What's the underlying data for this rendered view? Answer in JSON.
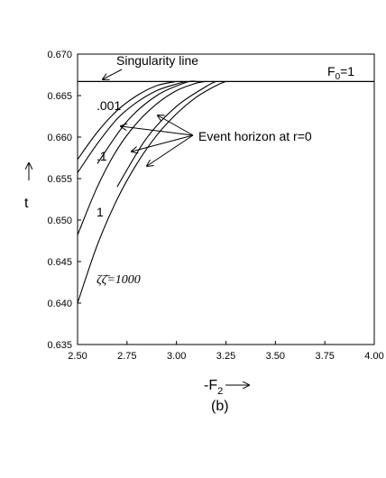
{
  "chart_data": {
    "type": "line",
    "panel_label": "(b)",
    "xlabel": "-F",
    "xlabel_sub": "2",
    "ylabel": "t",
    "xlim": [
      2.5,
      4.0
    ],
    "ylim": [
      0.635,
      0.67
    ],
    "x_ticks": [
      "2.50",
      "2.75",
      "3.00",
      "3.25",
      "3.50",
      "3.75",
      "4.00"
    ],
    "x_tick_values": [
      2.5,
      2.75,
      3.0,
      3.25,
      3.5,
      3.75,
      4.0
    ],
    "y_ticks": [
      "0.635",
      "0.640",
      "0.645",
      "0.650",
      "0.655",
      "0.660",
      "0.665",
      "0.670"
    ],
    "y_tick_values": [
      0.635,
      0.64,
      0.645,
      0.65,
      0.655,
      0.66,
      0.665,
      0.67
    ],
    "singularity_t": 0.6667,
    "series": [
      {
        "name": ".001",
        "x": [
          2.5,
          2.6,
          2.7,
          2.8,
          2.9,
          3.0
        ],
        "y": [
          0.6573,
          0.6606,
          0.6632,
          0.665,
          0.6662,
          0.6667
        ]
      },
      {
        "name": ".1",
        "x": [
          2.5,
          2.6,
          2.7,
          2.8,
          2.9,
          3.0,
          3.05
        ],
        "y": [
          0.6557,
          0.6592,
          0.6622,
          0.6642,
          0.6656,
          0.6664,
          0.6667
        ]
      },
      {
        "name": "1",
        "x": [
          2.5,
          2.6,
          2.7,
          2.8,
          2.9,
          3.0,
          3.1,
          3.15
        ],
        "y": [
          0.6482,
          0.654,
          0.6585,
          0.6617,
          0.664,
          0.6656,
          0.6665,
          0.6667
        ]
      },
      {
        "name": "1000",
        "x": [
          2.5,
          2.6,
          2.7,
          2.8,
          2.9,
          3.0,
          3.1,
          3.2,
          3.25
        ],
        "y": [
          0.64,
          0.647,
          0.6525,
          0.6568,
          0.6602,
          0.6628,
          0.6648,
          0.6662,
          0.6667
        ]
      },
      {
        "name": "event-horizon-a",
        "x": [
          2.6,
          2.75,
          2.9,
          3.05,
          3.1
        ],
        "y": [
          0.6568,
          0.6619,
          0.665,
          0.6666,
          0.6667
        ]
      },
      {
        "name": "event-horizon-b",
        "x": [
          2.7,
          2.85,
          3.0,
          3.15,
          3.2
        ],
        "y": [
          0.654,
          0.6599,
          0.6637,
          0.6661,
          0.6667
        ]
      }
    ],
    "annotations": {
      "singularity": "Singularity line",
      "f0_main": "F",
      "f0_sub": "0",
      "f0_value": "=1",
      "event_horizon": "Event horizon at r=0",
      "label_001": ".001",
      "label_01": ".1",
      "label_1": "1",
      "label_zeta": "ζζ̄=1000"
    }
  }
}
